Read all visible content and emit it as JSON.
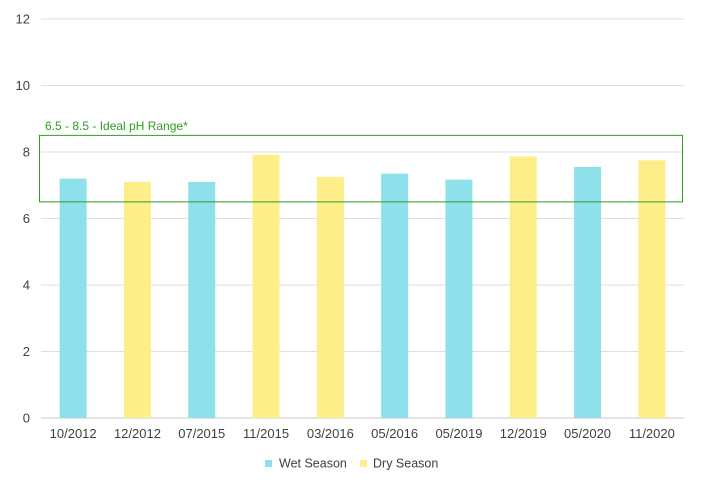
{
  "chart_data": {
    "type": "bar",
    "categories": [
      "10/2012",
      "12/2012",
      "07/2015",
      "11/2015",
      "03/2016",
      "05/2016",
      "05/2019",
      "12/2019",
      "05/2020",
      "11/2020"
    ],
    "values": [
      7.2,
      7.1,
      7.1,
      7.92,
      7.25,
      7.35,
      7.17,
      7.87,
      7.55,
      7.75
    ],
    "seasons": [
      "Wet Season",
      "Dry Season",
      "Wet Season",
      "Dry Season",
      "Dry Season",
      "Wet Season",
      "Wet Season",
      "Dry Season",
      "Wet Season",
      "Dry Season"
    ],
    "legend": [
      {
        "name": "Wet Season",
        "color": "#8ee0eb"
      },
      {
        "name": "Dry Season",
        "color": "#fdee8a"
      }
    ],
    "legend_position": "bottom",
    "ylim": [
      0,
      12
    ],
    "yticks": [
      "0",
      "2",
      "4",
      "6",
      "8",
      "10",
      "12"
    ],
    "grid": true,
    "range_band": {
      "low": 6.5,
      "high": 8.5,
      "label": "6.5 - 8.5 - Ideal pH Range*",
      "color": "#2e9e1e"
    },
    "xlabel": "",
    "ylabel": "",
    "title": ""
  }
}
